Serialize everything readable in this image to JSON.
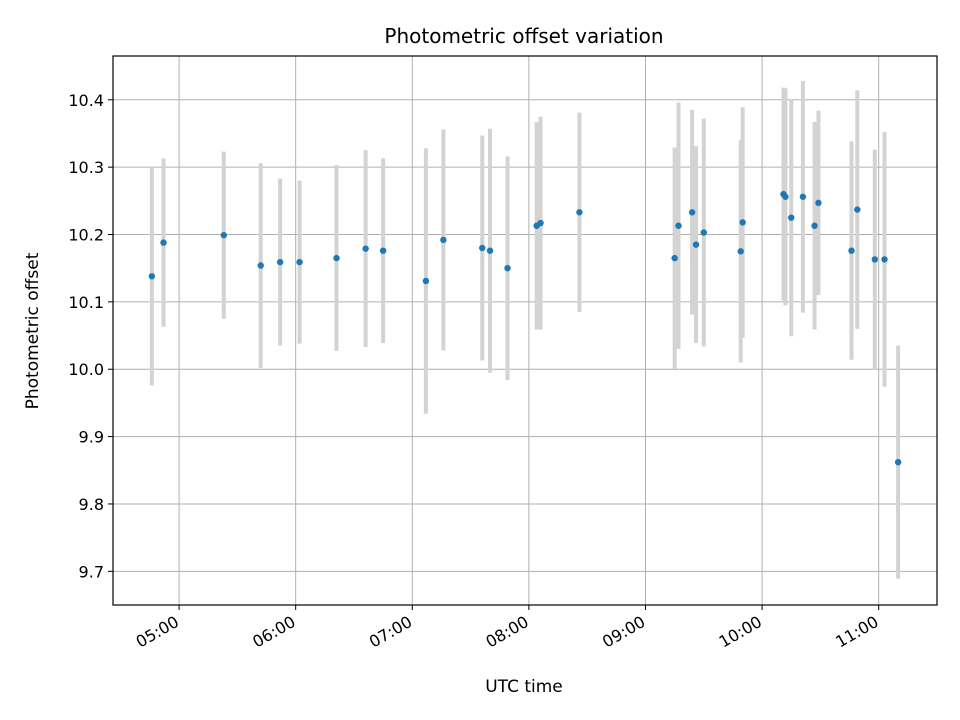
{
  "chart_data": {
    "type": "scatter",
    "title": "Photometric offset variation",
    "xlabel": "UTC time",
    "ylabel": "Photometric offset",
    "x_ticks": [
      "05:00",
      "06:00",
      "07:00",
      "08:00",
      "09:00",
      "10:00",
      "11:00"
    ],
    "y_ticks": [
      "9.7",
      "9.8",
      "9.9",
      "10.0",
      "10.1",
      "10.2",
      "10.3",
      "10.4"
    ],
    "xlim": [
      "04:26",
      "11:30"
    ],
    "ylim": [
      9.65,
      10.465
    ],
    "grid": true,
    "colors": {
      "point": "#1f77b4",
      "errorbar": "#d3d3d3",
      "grid": "#b0b0b0"
    },
    "series": [
      {
        "points": [
          {
            "x": "04:46",
            "y": 10.138,
            "err": 0.162
          },
          {
            "x": "04:52",
            "y": 10.188,
            "err": 0.125
          },
          {
            "x": "05:23",
            "y": 10.199,
            "err": 0.124
          },
          {
            "x": "05:42",
            "y": 10.154,
            "err": 0.152
          },
          {
            "x": "05:52",
            "y": 10.159,
            "err": 0.124
          },
          {
            "x": "06:02",
            "y": 10.159,
            "err": 0.121
          },
          {
            "x": "06:21",
            "y": 10.165,
            "err": 0.138
          },
          {
            "x": "06:36",
            "y": 10.179,
            "err": 0.146
          },
          {
            "x": "06:45",
            "y": 10.176,
            "err": 0.137
          },
          {
            "x": "07:07",
            "y": 10.131,
            "err": 0.197
          },
          {
            "x": "07:16",
            "y": 10.192,
            "err": 0.164
          },
          {
            "x": "07:36",
            "y": 10.18,
            "err": 0.167
          },
          {
            "x": "07:40",
            "y": 10.176,
            "err": 0.181
          },
          {
            "x": "07:49",
            "y": 10.15,
            "err": 0.166
          },
          {
            "x": "08:04",
            "y": 10.213,
            "err": 0.154
          },
          {
            "x": "08:06",
            "y": 10.217,
            "err": 0.158
          },
          {
            "x": "08:26",
            "y": 10.233,
            "err": 0.148
          },
          {
            "x": "09:15",
            "y": 10.165,
            "err": 0.164
          },
          {
            "x": "09:17",
            "y": 10.213,
            "err": 0.183
          },
          {
            "x": "09:24",
            "y": 10.233,
            "err": 0.152
          },
          {
            "x": "09:26",
            "y": 10.185,
            "err": 0.146
          },
          {
            "x": "09:30",
            "y": 10.203,
            "err": 0.169
          },
          {
            "x": "09:49",
            "y": 10.175,
            "err": 0.165
          },
          {
            "x": "09:50",
            "y": 10.218,
            "err": 0.171
          },
          {
            "x": "10:11",
            "y": 10.26,
            "err": 0.158
          },
          {
            "x": "10:12",
            "y": 10.256,
            "err": 0.161
          },
          {
            "x": "10:15",
            "y": 10.225,
            "err": 0.176
          },
          {
            "x": "10:21",
            "y": 10.256,
            "err": 0.172
          },
          {
            "x": "10:27",
            "y": 10.213,
            "err": 0.154
          },
          {
            "x": "10:29",
            "y": 10.247,
            "err": 0.137
          },
          {
            "x": "10:46",
            "y": 10.176,
            "err": 0.162
          },
          {
            "x": "10:49",
            "y": 10.237,
            "err": 0.177
          },
          {
            "x": "10:58",
            "y": 10.163,
            "err": 0.163
          },
          {
            "x": "11:03",
            "y": 10.163,
            "err": 0.189
          },
          {
            "x": "11:10",
            "y": 9.862,
            "err": 0.173
          }
        ]
      }
    ]
  }
}
